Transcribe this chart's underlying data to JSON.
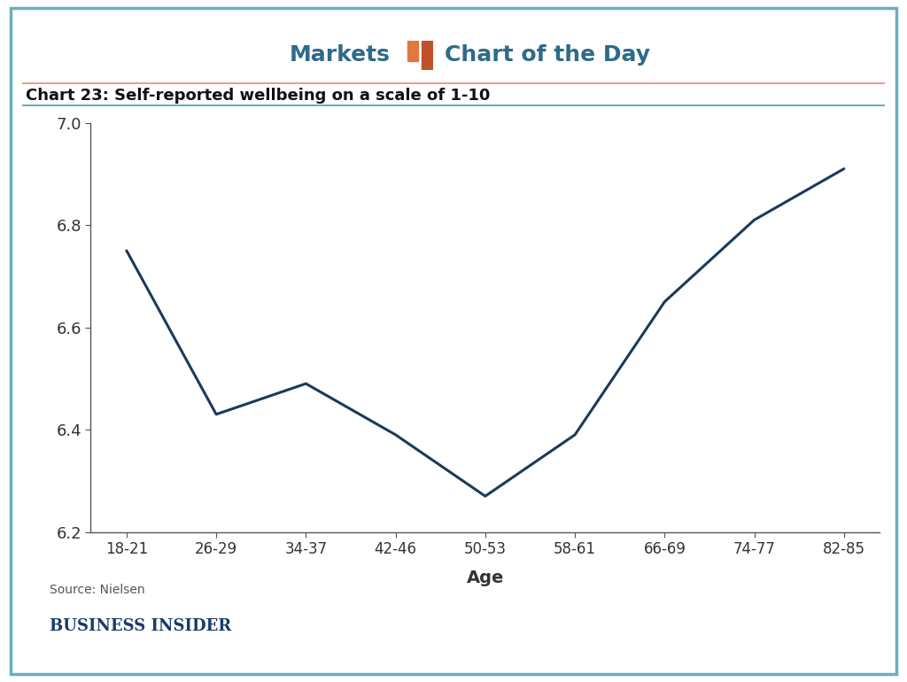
{
  "title_left": "Markets",
  "title_right": "Chart of the Day",
  "subtitle": "Chart 23: Self-reported wellbeing on a scale of 1-10",
  "xlabel": "Age",
  "source": "Source: Nielsen",
  "brand": "BUSINESS INSIDER",
  "x_labels": [
    "18-21",
    "26-29",
    "34-37",
    "42-46",
    "50-53",
    "58-61",
    "66-69",
    "74-77",
    "82-85"
  ],
  "y_values": [
    6.75,
    6.43,
    6.49,
    6.39,
    6.27,
    6.39,
    6.65,
    6.81,
    6.91
  ],
  "ylim": [
    6.2,
    7.0
  ],
  "yticks": [
    6.2,
    6.4,
    6.6,
    6.8,
    7.0
  ],
  "line_color": "#1a3a5c",
  "line_width": 2.2,
  "title_color": "#2e6b8a",
  "subtitle_color": "#111111",
  "border_color": "#6aafbf",
  "separator_color": "#e8a090",
  "background_color": "#ffffff",
  "icon_color_tall": "#c0522a",
  "icon_color_short": "#e07840",
  "source_color": "#555555",
  "brand_color": "#1a3a6a",
  "axis_color": "#555555",
  "tick_label_color": "#333333"
}
